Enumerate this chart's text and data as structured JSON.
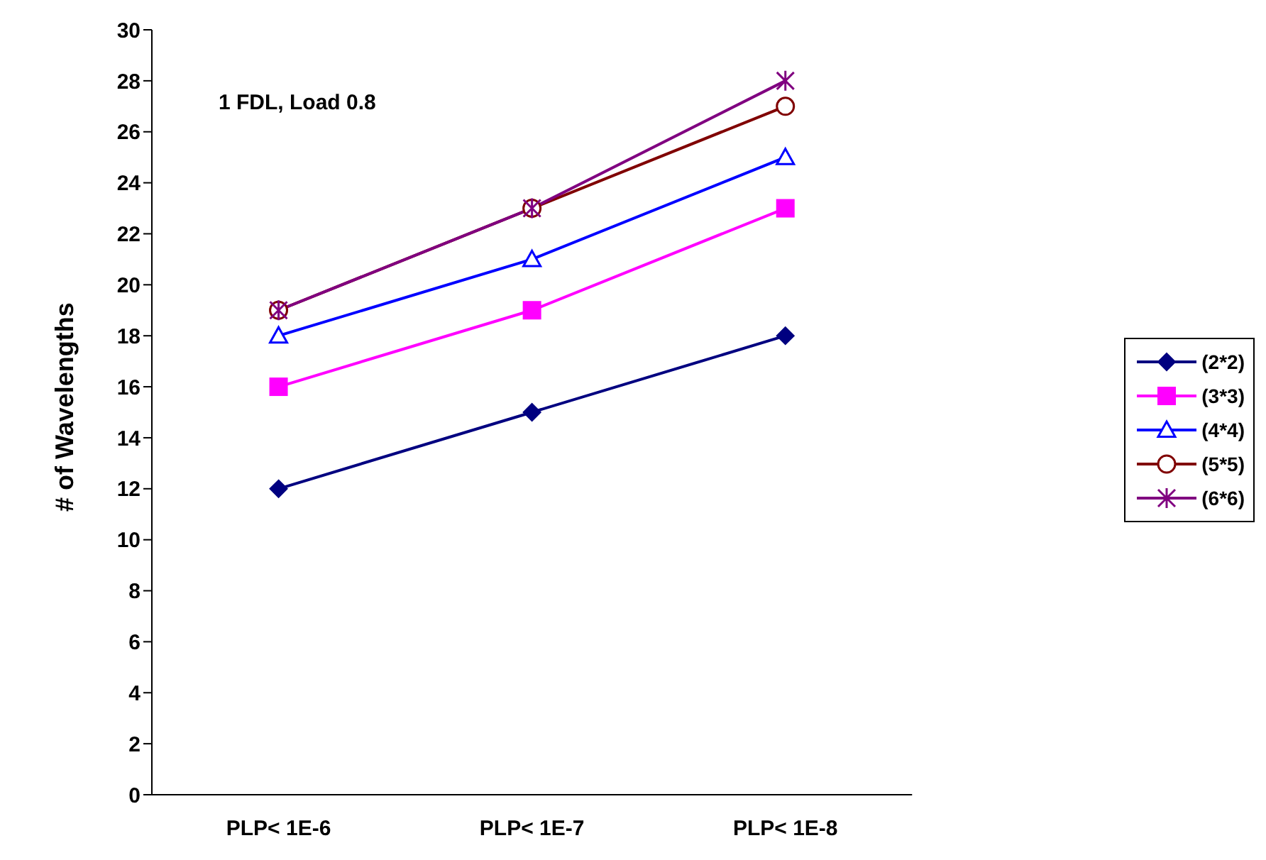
{
  "chart_data": {
    "type": "line",
    "ylabel": "# of Wavelengths",
    "annotations": [
      "1 FDL, Load 0.8"
    ],
    "categories": [
      "PLP< 1E-6",
      "PLP< 1E-7",
      "PLP< 1E-8"
    ],
    "series": [
      {
        "name": "(2*2)",
        "color": "#000080",
        "marker": "diamond",
        "values": [
          12,
          15,
          18
        ]
      },
      {
        "name": "(3*3)",
        "color": "#ff00ff",
        "marker": "square",
        "values": [
          16,
          19,
          23
        ]
      },
      {
        "name": "(4*4)",
        "color": "#0000ff",
        "marker": "triangle",
        "values": [
          18,
          21,
          25
        ]
      },
      {
        "name": "(5*5)",
        "color": "#800000",
        "marker": "circle",
        "values": [
          19,
          23,
          27
        ]
      },
      {
        "name": "(6*6)",
        "color": "#800080",
        "marker": "cross",
        "values": [
          19,
          23,
          28
        ]
      }
    ],
    "ylim": [
      0,
      30
    ],
    "yticks": [
      0,
      2,
      4,
      6,
      8,
      10,
      12,
      14,
      16,
      18,
      20,
      22,
      24,
      26,
      28,
      30
    ],
    "grid": false,
    "legend": "right"
  }
}
